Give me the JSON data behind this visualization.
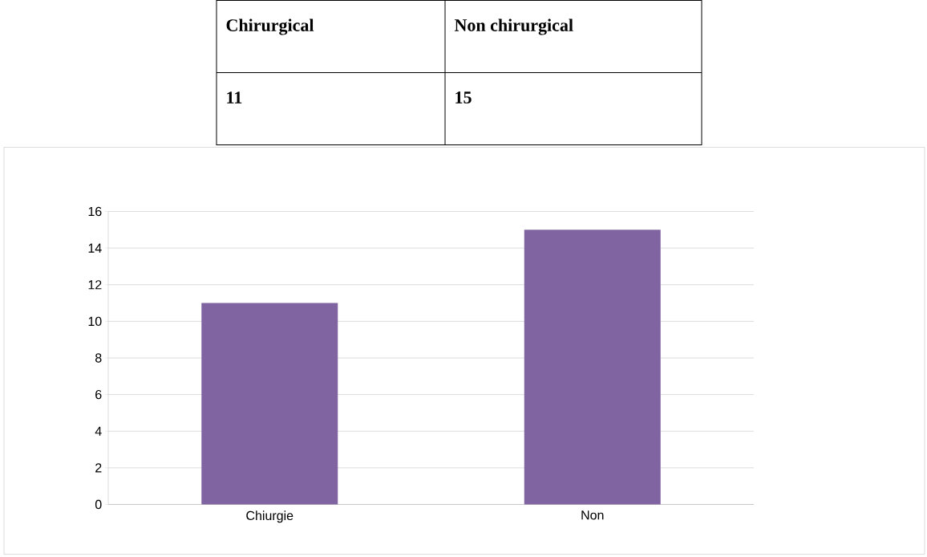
{
  "chart_data": {
    "type": "bar",
    "categories": [
      "Chiurgie",
      "Non"
    ],
    "values": [
      11,
      15
    ],
    "color": "#8064a2",
    "ylim": [
      0,
      16
    ],
    "yticks": [
      0,
      2,
      4,
      6,
      8,
      10,
      12,
      14,
      16
    ],
    "grid": "y",
    "data_labels": true,
    "annotations": [
      "Chirurgical",
      "Non chirurgical"
    ]
  }
}
